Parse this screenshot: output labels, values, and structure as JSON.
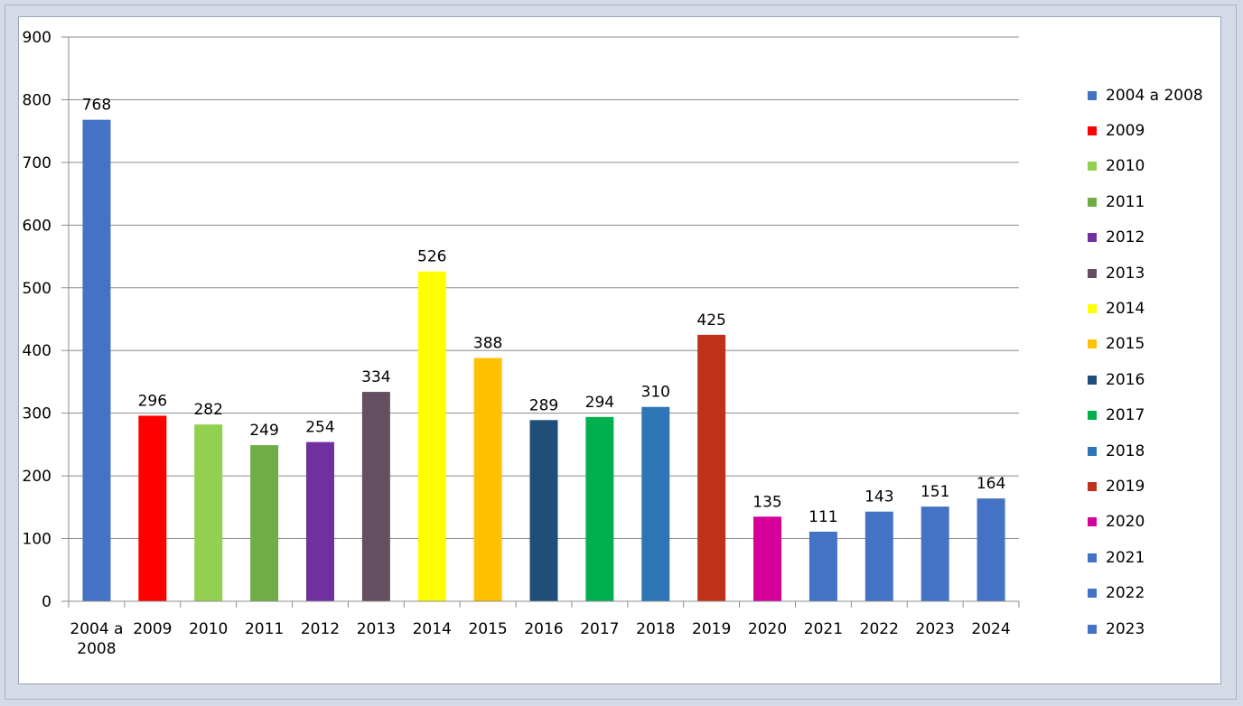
{
  "chart_data": {
    "type": "bar",
    "categories": [
      "2004 a 2008",
      "2009",
      "2010",
      "2011",
      "2012",
      "2013",
      "2014",
      "2015",
      "2016",
      "2017",
      "2018",
      "2019",
      "2020",
      "2021",
      "2022",
      "2023",
      "2024"
    ],
    "category_lines": [
      [
        "2004 a",
        "2008"
      ],
      [
        "2009"
      ],
      [
        "2010"
      ],
      [
        "2011"
      ],
      [
        "2012"
      ],
      [
        "2013"
      ],
      [
        "2014"
      ],
      [
        "2015"
      ],
      [
        "2016"
      ],
      [
        "2017"
      ],
      [
        "2018"
      ],
      [
        "2019"
      ],
      [
        "2020"
      ],
      [
        "2021"
      ],
      [
        "2022"
      ],
      [
        "2023"
      ],
      [
        "2024"
      ]
    ],
    "values": [
      768,
      296,
      282,
      249,
      254,
      334,
      526,
      388,
      289,
      294,
      310,
      425,
      135,
      111,
      143,
      151,
      164
    ],
    "colors": [
      "#4472c4",
      "#ff0000",
      "#92d050",
      "#70ad47",
      "#7030a0",
      "#654e60",
      "#ffff00",
      "#ffc000",
      "#1f4e79",
      "#00b050",
      "#2e75b6",
      "#c0311b",
      "#d5009a",
      "#4472c4",
      "#4472c4",
      "#4472c4",
      "#4472c4"
    ],
    "data_labels": true,
    "title": "",
    "xlabel": "",
    "ylabel": "",
    "ylim": [
      0,
      900
    ],
    "y_ticks": [
      0,
      100,
      200,
      300,
      400,
      500,
      600,
      700,
      800,
      900
    ],
    "grid": true,
    "legend": {
      "position": "right",
      "entries": [
        {
          "label": "2004 a 2008",
          "color": "#4472c4"
        },
        {
          "label": "2009",
          "color": "#ff0000"
        },
        {
          "label": "2010",
          "color": "#92d050"
        },
        {
          "label": "2011",
          "color": "#70ad47"
        },
        {
          "label": "2012",
          "color": "#7030a0"
        },
        {
          "label": "2013",
          "color": "#654e60"
        },
        {
          "label": "2014",
          "color": "#ffff00"
        },
        {
          "label": "2015",
          "color": "#ffc000"
        },
        {
          "label": "2016",
          "color": "#1f4e79"
        },
        {
          "label": "2017",
          "color": "#00b050"
        },
        {
          "label": "2018",
          "color": "#2e75b6"
        },
        {
          "label": "2019",
          "color": "#c0311b"
        },
        {
          "label": "2020",
          "color": "#d5009a"
        },
        {
          "label": "2021",
          "color": "#4472c4"
        },
        {
          "label": "2022",
          "color": "#4472c4"
        },
        {
          "label": "2023",
          "color": "#4472c4"
        }
      ]
    }
  }
}
